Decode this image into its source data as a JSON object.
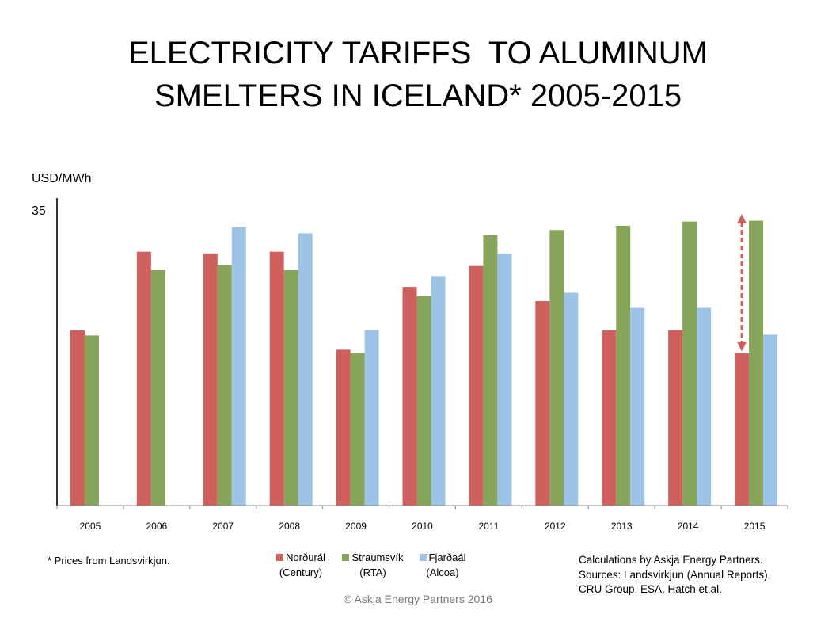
{
  "title_lines": [
    "ELECTRICITY TARIFFS  TO ALUMINUM",
    "SMELTERS IN ICELAND* 2005-2015"
  ],
  "footnote": "* Prices from Landsvirkjun.",
  "sources": [
    "Calculations by Askja Energy Partners.",
    "Sources: Landsvirkjun  (Annual Reports),",
    "CRU Group, ESA, Hatch et.al."
  ],
  "copyright": "© Askja Energy Partners 2016",
  "legend": [
    {
      "line1": "Norðurál",
      "line2": "(Century)",
      "color": "#d0605e"
    },
    {
      "line1": "Straumsvík",
      "line2": "(RTA)",
      "color": "#87a55a"
    },
    {
      "line1": "Fjarðaál",
      "line2": "(Alcoa)",
      "color": "#9dc3e6"
    }
  ],
  "chart_data": {
    "type": "bar",
    "title": "ELECTRICITY TARIFFS TO ALUMINUM SMELTERS IN ICELAND* 2005-2015",
    "xlabel": "",
    "ylabel": "USD/MWh",
    "ylim": [
      0,
      35
    ],
    "yticks": [
      "35"
    ],
    "grid": false,
    "legend_position": "bottom",
    "categories": [
      "2005",
      "2006",
      "2007",
      "2008",
      "2009",
      "2010",
      "2011",
      "2012",
      "2013",
      "2014",
      "2015"
    ],
    "series": [
      {
        "name": "Norðurál (Century)",
        "color": "#d0605e",
        "values": [
          20.9,
          30.3,
          30.1,
          30.3,
          18.6,
          26.1,
          28.6,
          24.4,
          20.9,
          20.9,
          18.2
        ]
      },
      {
        "name": "Straumsvík (RTA)",
        "color": "#87a55a",
        "values": [
          20.3,
          28.1,
          28.7,
          28.1,
          18.2,
          25.0,
          32.3,
          32.9,
          33.4,
          33.9,
          34.0
        ]
      },
      {
        "name": "Fjarðaál (Alcoa)",
        "color": "#9dc3e6",
        "values": [
          null,
          null,
          33.2,
          32.5,
          21.0,
          27.4,
          30.1,
          25.4,
          23.6,
          23.6,
          20.4
        ]
      }
    ],
    "annotations": [
      {
        "type": "double-arrow-dashed",
        "category": "2015",
        "from_value": 18.2,
        "to_value": 35,
        "color": "#d0605e"
      }
    ]
  }
}
